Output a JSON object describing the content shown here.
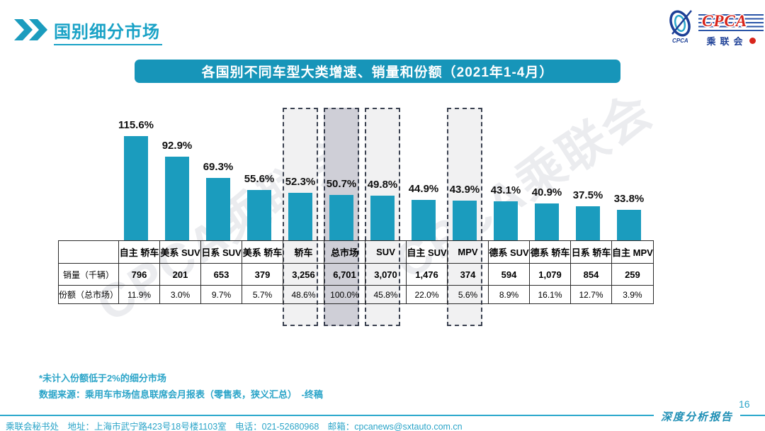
{
  "page": {
    "title": "国别细分市场",
    "page_number": "16",
    "report_label": "深度分析报告"
  },
  "logo": {
    "cpca": "CPCA",
    "org_cn": "乘联会",
    "emblem_text": "CPCA"
  },
  "banner": {
    "text": "各国别不同车型大类增速、销量和份额（2021年1-4月）"
  },
  "watermark": {
    "text": "CPCA乘联会"
  },
  "notes": {
    "note1": "*未计入份额低于2%的细分市场",
    "note2": "数据来源：乘用车市场信息联席会月报表（零售表，狭义汇总）　-终稿"
  },
  "footer": {
    "text": "乘联会秘书处　地址：上海市武宁路423号18号楼1103室　电话：021-52680968　邮箱：cpcanews@sxtauto.com.cn"
  },
  "colors": {
    "accent": "#1B9CBE",
    "bar": "#1B9CBE",
    "highlight_light": "#F1F1F2",
    "highlight_dark": "#CFCFD7",
    "dashed_border": "#3A4150",
    "footer_teal": "#2AA4C8"
  },
  "table": {
    "corner": "",
    "row_labels": [
      "销量（千辆）",
      "份额（总市场）"
    ],
    "columns": [
      {
        "label": "自主 轿车",
        "value": 115.6,
        "growth": "115.6%",
        "sales": "796",
        "share": "11.9%",
        "highlight": null
      },
      {
        "label": "美系 SUV",
        "value": 92.9,
        "growth": "92.9%",
        "sales": "201",
        "share": "3.0%",
        "highlight": null
      },
      {
        "label": "日系 SUV",
        "value": 69.3,
        "growth": "69.3%",
        "sales": "653",
        "share": "9.7%",
        "highlight": null
      },
      {
        "label": "美系 轿车",
        "value": 55.6,
        "growth": "55.6%",
        "sales": "379",
        "share": "5.7%",
        "highlight": null
      },
      {
        "label": "轿车",
        "value": 52.3,
        "growth": "52.3%",
        "sales": "3,256",
        "share": "48.6%",
        "highlight": "light"
      },
      {
        "label": "总市场",
        "value": 50.7,
        "growth": "50.7%",
        "sales": "6,701",
        "share": "100.0%",
        "highlight": "dark"
      },
      {
        "label": "SUV",
        "value": 49.8,
        "growth": "49.8%",
        "sales": "3,070",
        "share": "45.8%",
        "highlight": "light"
      },
      {
        "label": "自主 SUV",
        "value": 44.9,
        "growth": "44.9%",
        "sales": "1,476",
        "share": "22.0%",
        "highlight": null
      },
      {
        "label": "MPV",
        "value": 43.9,
        "growth": "43.9%",
        "sales": "374",
        "share": "5.6%",
        "highlight": "light"
      },
      {
        "label": "德系 SUV",
        "value": 43.1,
        "growth": "43.1%",
        "sales": "594",
        "share": "8.9%",
        "highlight": null
      },
      {
        "label": "德系 轿车",
        "value": 40.9,
        "growth": "40.9%",
        "sales": "1,079",
        "share": "16.1%",
        "highlight": null
      },
      {
        "label": "日系 轿车",
        "value": 37.5,
        "growth": "37.5%",
        "sales": "854",
        "share": "12.7%",
        "highlight": null
      },
      {
        "label": "自主 MPV",
        "value": 33.8,
        "growth": "33.8%",
        "sales": "259",
        "share": "3.9%",
        "highlight": null
      }
    ]
  },
  "chart_data": {
    "type": "bar",
    "title": "各国别不同车型大类增速、销量和份额（2021年1-4月）",
    "categories": [
      "自主 轿车",
      "美系 SUV",
      "日系 SUV",
      "美系 轿车",
      "轿车",
      "总市场",
      "SUV",
      "自主 SUV",
      "MPV",
      "德系 SUV",
      "德系 轿车",
      "日系 轿车",
      "自主 MPV"
    ],
    "series": [
      {
        "name": "同比增速（%）",
        "values": [
          115.6,
          92.9,
          69.3,
          55.6,
          52.3,
          50.7,
          49.8,
          44.9,
          43.9,
          43.1,
          40.9,
          37.5,
          33.8
        ]
      },
      {
        "name": "销量（千辆）",
        "values": [
          796,
          201,
          653,
          379,
          3256,
          6701,
          3070,
          1476,
          374,
          594,
          1079,
          854,
          259
        ]
      },
      {
        "name": "份额（总市场）（%）",
        "values": [
          11.9,
          3.0,
          9.7,
          5.7,
          48.6,
          100.0,
          45.8,
          22.0,
          5.6,
          8.9,
          16.1,
          12.7,
          3.9
        ]
      }
    ],
    "highlighted_categories": [
      "轿车",
      "总市场",
      "SUV",
      "MPV"
    ],
    "xlabel": "",
    "ylabel": "",
    "ylim": [
      0,
      130
    ],
    "grid": false,
    "legend": false,
    "data_labels": true
  }
}
